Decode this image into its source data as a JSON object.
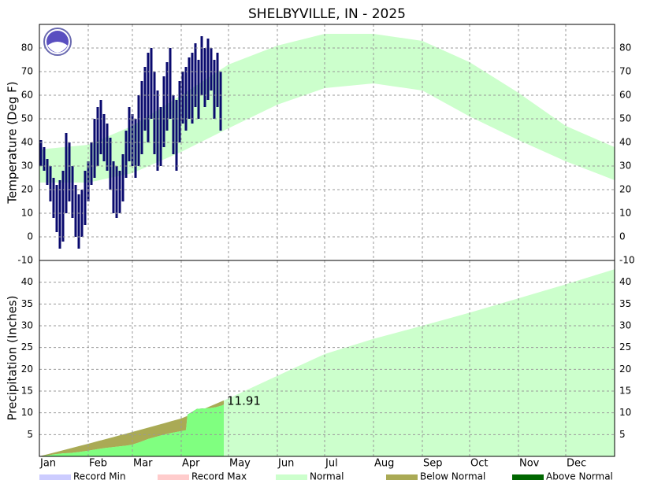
{
  "chart_data": [
    {
      "type": "temperature",
      "title": "SHELBYVILLE, IN - 2025",
      "y_label": "Temperature (Deg F)",
      "xlim": [
        0,
        365
      ],
      "ylim": [
        -10,
        90
      ],
      "yticks": [
        -10,
        0,
        10,
        20,
        30,
        40,
        50,
        60,
        70,
        80
      ],
      "grid": true,
      "normal": {
        "x": [
          0,
          31,
          59,
          90,
          120,
          151,
          181,
          212,
          243,
          273,
          304,
          334,
          365
        ],
        "low": [
          23,
          23,
          27,
          36,
          46,
          56,
          63,
          65,
          62,
          51,
          41,
          32,
          24
        ],
        "high": [
          37,
          39,
          47,
          60,
          73,
          81,
          86,
          86,
          83,
          74,
          61,
          47,
          38
        ]
      },
      "observed": {
        "color": "#0a0a6e",
        "x": [
          1,
          3,
          5,
          7,
          9,
          11,
          13,
          15,
          17,
          19,
          21,
          23,
          25,
          27,
          29,
          31,
          33,
          35,
          37,
          39,
          41,
          43,
          45,
          47,
          49,
          51,
          53,
          55,
          57,
          59,
          61,
          63,
          65,
          67,
          69,
          71,
          73,
          75,
          77,
          79,
          81,
          83,
          85,
          87,
          89,
          91,
          93,
          95,
          97,
          99,
          101,
          103,
          105,
          107,
          109,
          111,
          113,
          115
        ],
        "high": [
          41,
          38,
          33,
          30,
          25,
          22,
          24,
          28,
          44,
          40,
          30,
          22,
          18,
          20,
          28,
          32,
          40,
          50,
          55,
          58,
          52,
          48,
          42,
          32,
          30,
          28,
          35,
          45,
          55,
          52,
          50,
          60,
          66,
          72,
          78,
          80,
          70,
          62,
          55,
          68,
          74,
          80,
          60,
          58,
          66,
          70,
          72,
          76,
          78,
          82,
          75,
          85,
          80,
          84,
          80,
          75,
          78,
          70
        ],
        "low": [
          30,
          28,
          22,
          15,
          8,
          2,
          -5,
          -2,
          10,
          15,
          8,
          0,
          -5,
          0,
          5,
          15,
          22,
          25,
          30,
          35,
          32,
          28,
          20,
          10,
          8,
          10,
          15,
          25,
          32,
          30,
          25,
          30,
          35,
          45,
          40,
          50,
          35,
          28,
          30,
          38,
          45,
          50,
          35,
          28,
          40,
          48,
          45,
          50,
          48,
          55,
          50,
          60,
          55,
          58,
          62,
          50,
          55,
          45
        ]
      }
    },
    {
      "type": "precipitation",
      "y_label": "Precipitation (Inches)",
      "xlim": [
        0,
        365
      ],
      "ylim": [
        0,
        45
      ],
      "yticks": [
        5,
        10,
        15,
        20,
        25,
        30,
        35,
        40
      ],
      "grid": true,
      "xticks": [
        {
          "value": 0,
          "label": "Jan"
        },
        {
          "value": 31,
          "label": "Feb"
        },
        {
          "value": 59,
          "label": "Mar"
        },
        {
          "value": 90,
          "label": "Apr"
        },
        {
          "value": 120,
          "label": "May"
        },
        {
          "value": 151,
          "label": "Jun"
        },
        {
          "value": 181,
          "label": "Jul"
        },
        {
          "value": 212,
          "label": "Aug"
        },
        {
          "value": 243,
          "label": "Sep"
        },
        {
          "value": 273,
          "label": "Oct"
        },
        {
          "value": 304,
          "label": "Nov"
        },
        {
          "value": 334,
          "label": "Dec"
        }
      ],
      "normal": {
        "x": [
          0,
          31,
          59,
          90,
          120,
          151,
          181,
          212,
          243,
          273,
          304,
          334,
          365
        ],
        "values": [
          0,
          2.9,
          5.6,
          8.7,
          13.3,
          18.5,
          23.5,
          27,
          30,
          33,
          36.3,
          39.5,
          43
        ]
      },
      "observed": {
        "color": "#80ff80",
        "x": [
          0,
          5,
          10,
          15,
          20,
          25,
          31,
          36,
          41,
          46,
          51,
          56,
          59,
          64,
          69,
          74,
          79,
          84,
          90,
          93,
          94,
          96,
          100,
          104,
          108,
          112,
          116,
          117
        ],
        "values": [
          0,
          0.2,
          0.5,
          0.7,
          0.8,
          1.0,
          1.3,
          1.6,
          1.9,
          2.1,
          2.3,
          2.5,
          2.7,
          3.3,
          4.0,
          4.5,
          5.0,
          5.4,
          5.8,
          6.0,
          9.6,
          10.0,
          10.9,
          11.0,
          11.1,
          11.3,
          11.7,
          11.91
        ],
        "last_label": "11.91"
      }
    }
  ],
  "legend": [
    {
      "name": "Record Min",
      "color": "#ccccff"
    },
    {
      "name": "Record Max",
      "color": "#ffcccc"
    },
    {
      "name": "Normal",
      "color": "#ccffcc"
    },
    {
      "name": "Below Normal",
      "color": "#aaaa55"
    },
    {
      "name": "Above Normal",
      "color": "#006600"
    }
  ]
}
